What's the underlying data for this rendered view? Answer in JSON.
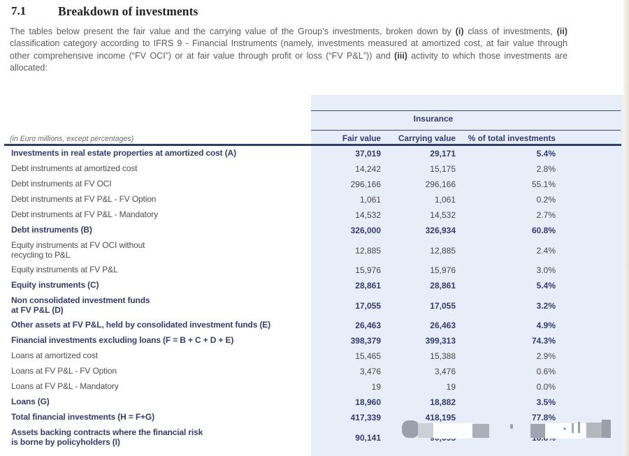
{
  "heading": {
    "section_number": "7.1",
    "title": "Breakdown of investments"
  },
  "intro": {
    "p1": "The tables below present the fair value and the carrying value of the Group’s investments, broken down by ",
    "b1": "(i)",
    "p2": " class of investments, ",
    "b2": "(ii)",
    "p3": " classification category according to IFRS 9 - Financial Instruments (namely, investments measured at amortized cost, at fair value through other comprehensive income (“FV OCI”) or at fair value through profit or loss (“FV P&L”)) and ",
    "b3": "(iii)",
    "p4": " activity to which those investments are allocated:"
  },
  "table": {
    "note": "(in Euro millions, except percentages)",
    "group_header": "Insurance",
    "columns": [
      "Fair value",
      "Carrying value",
      "% of total investments"
    ],
    "rows": [
      {
        "label": "Investments in real estate properties at amortized cost (A)",
        "fair_value": "37,019",
        "carrying_value": "29,171",
        "pct": "5.4%",
        "emphasis": true
      },
      {
        "label": "Debt instruments at amortized cost",
        "fair_value": "14,242",
        "carrying_value": "15,175",
        "pct": "2.8%",
        "emphasis": false
      },
      {
        "label": "Debt instruments at FV OCI",
        "fair_value": "296,166",
        "carrying_value": "296,166",
        "pct": "55.1%",
        "emphasis": false
      },
      {
        "label": "Debt instruments at FV P&L - FV Option",
        "fair_value": "1,061",
        "carrying_value": "1,061",
        "pct": "0.2%",
        "emphasis": false
      },
      {
        "label": "Debt instruments at FV P&L - Mandatory",
        "fair_value": "14,532",
        "carrying_value": "14,532",
        "pct": "2.7%",
        "emphasis": false
      },
      {
        "label": "Debt instruments (B)",
        "fair_value": "326,000",
        "carrying_value": "326,934",
        "pct": "60.8%",
        "emphasis": true
      },
      {
        "label": "Equity instruments at FV OCI without\nrecycling to P&L",
        "fair_value": "12,885",
        "carrying_value": "12,885",
        "pct": "2.4%",
        "emphasis": false
      },
      {
        "label": "Equity instruments at FV P&L",
        "fair_value": "15,976",
        "carrying_value": "15,976",
        "pct": "3.0%",
        "emphasis": false
      },
      {
        "label": "Equity instruments (C)",
        "fair_value": "28,861",
        "carrying_value": "28,861",
        "pct": "5.4%",
        "emphasis": true
      },
      {
        "label": "Non consolidated investment funds\nat FV P&L (D)",
        "fair_value": "17,055",
        "carrying_value": "17,055",
        "pct": "3.2%",
        "emphasis": true
      },
      {
        "label": "Other assets at FV P&L, held by consolidated investment funds (E)",
        "fair_value": "26,463",
        "carrying_value": "26,463",
        "pct": "4.9%",
        "emphasis": true
      },
      {
        "label": "Financial investments excluding loans (F = B + C + D + E)",
        "fair_value": "398,379",
        "carrying_value": "399,313",
        "pct": "74.3%",
        "emphasis": true
      },
      {
        "label": "Loans at amortized cost",
        "fair_value": "15,465",
        "carrying_value": "15,388",
        "pct": "2.9%",
        "emphasis": false
      },
      {
        "label": "Loans at FV P&L - FV Option",
        "fair_value": "3,476",
        "carrying_value": "3,476",
        "pct": "0.6%",
        "emphasis": false
      },
      {
        "label": "Loans at FV P&L - Mandatory",
        "fair_value": "19",
        "carrying_value": "19",
        "pct": "0.0%",
        "emphasis": false
      },
      {
        "label": "Loans (G)",
        "fair_value": "18,960",
        "carrying_value": "18,882",
        "pct": "3.5%",
        "emphasis": true
      },
      {
        "label": "Total financial investments (H = F+G)",
        "fair_value": "417,339",
        "carrying_value": "418,195",
        "pct": "77.8%",
        "emphasis": true
      },
      {
        "label": "Assets backing contracts where the financial risk\nis borne by policyholders (I)",
        "fair_value": "90,141",
        "carrying_value": "90,095",
        "pct": "16.8%",
        "emphasis": true
      }
    ]
  },
  "colors": {
    "accent_navy": "#343d6e",
    "panel_blue": "#e7eef7",
    "body_gray": "#5b5b5b",
    "page_edge_beige": "#e7e0d1"
  }
}
